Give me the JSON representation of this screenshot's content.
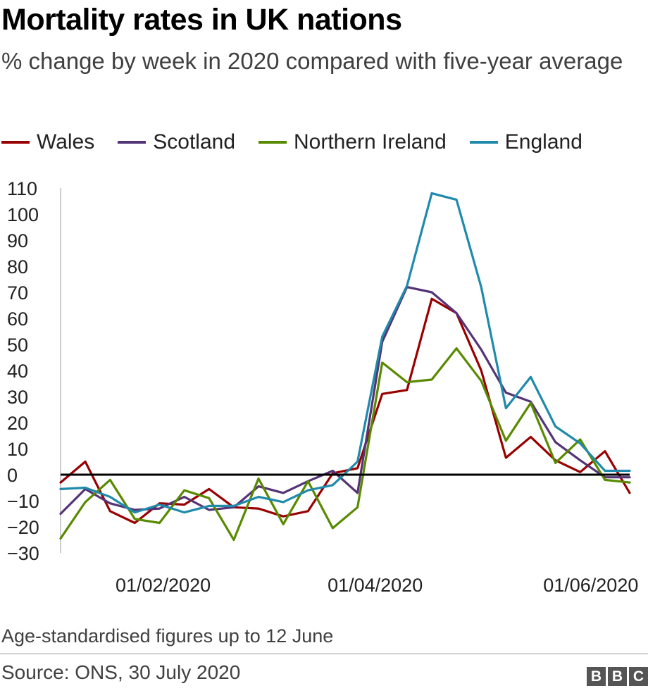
{
  "header": {
    "title": "Mortality rates in UK nations",
    "subtitle": "% change by week in 2020 compared with five-year average"
  },
  "footer": {
    "note": "Age-standardised figures up to 12 June",
    "source": "Source: ONS, 30 July 2020",
    "logo_letters": [
      "B",
      "B",
      "C"
    ]
  },
  "chart_data": {
    "type": "line",
    "title": "Mortality rates in UK nations",
    "subtitle": "% change by week in 2020 compared with five-year average",
    "xlabel": "",
    "ylabel": "",
    "x": [
      "2020-01-03",
      "2020-01-10",
      "2020-01-17",
      "2020-01-24",
      "2020-01-31",
      "2020-02-07",
      "2020-02-14",
      "2020-02-21",
      "2020-02-28",
      "2020-03-06",
      "2020-03-13",
      "2020-03-20",
      "2020-03-27",
      "2020-04-03",
      "2020-04-10",
      "2020-04-17",
      "2020-04-24",
      "2020-05-01",
      "2020-05-08",
      "2020-05-15",
      "2020-05-22",
      "2020-05-29",
      "2020-06-05",
      "2020-06-12"
    ],
    "x_tick_labels": [
      "01/02/2020",
      "01/04/2020",
      "01/06/2020"
    ],
    "x_tick_dates": [
      "2020-02-01",
      "2020-04-01",
      "2020-06-01"
    ],
    "y_ticks": [
      110,
      100,
      90,
      80,
      70,
      60,
      50,
      40,
      30,
      20,
      10,
      0,
      -10,
      -20,
      -30
    ],
    "y_tick_labels": [
      "110",
      "100",
      "90",
      "80",
      "70",
      "60",
      "50",
      "40",
      "30",
      "20",
      "10",
      "0",
      "−10",
      "−20",
      "−30"
    ],
    "ylim": [
      -30,
      110
    ],
    "zero_line": true,
    "grid": false,
    "legend_position": "top",
    "series": [
      {
        "name": "Wales",
        "color": "#990000",
        "values": [
          -3,
          5,
          -14,
          -18.5,
          -11,
          -11.5,
          -5.5,
          -12.5,
          -13,
          -16,
          -14,
          0.5,
          2.5,
          31,
          32.5,
          67.5,
          62,
          40,
          6.5,
          14.5,
          5.5,
          1,
          9,
          -7
        ]
      },
      {
        "name": "Scotland",
        "color": "#553377",
        "values": [
          -15,
          -5.5,
          -11,
          -13.5,
          -13,
          -8.5,
          -13.5,
          -12.5,
          -4.5,
          -7,
          -2.5,
          1.5,
          -7,
          51,
          72,
          70,
          62,
          48,
          31.5,
          28,
          12.5,
          5.5,
          -1,
          -1
        ]
      },
      {
        "name": "Northern Ireland",
        "color": "#588a00",
        "values": [
          -24.5,
          -10.5,
          -2,
          -17,
          -18.5,
          -6,
          -9,
          -25,
          -1.5,
          -19,
          -2.5,
          -20.5,
          -12.5,
          43,
          35.5,
          36.5,
          48.5,
          36,
          13,
          27.5,
          4.5,
          13.5,
          -2,
          -3
        ]
      },
      {
        "name": "England",
        "color": "#1f8aaa",
        "values": [
          -5.5,
          -5,
          -8.5,
          -14.5,
          -11.5,
          -14.5,
          -12,
          -12,
          -8.5,
          -10.5,
          -6,
          -4,
          5,
          53,
          72.5,
          108,
          105.5,
          72,
          25.5,
          37.5,
          18.5,
          12,
          1.5,
          1.5
        ]
      }
    ]
  }
}
